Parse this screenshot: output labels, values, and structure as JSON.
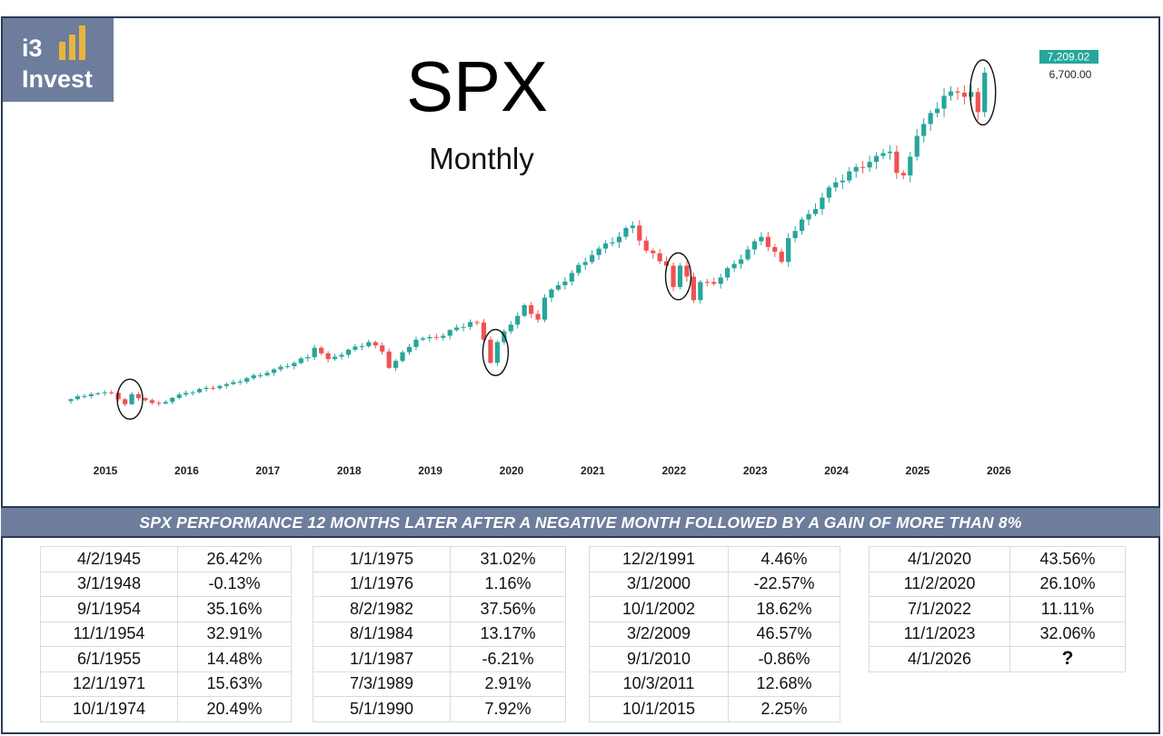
{
  "logo": {
    "line1": "i3",
    "line2": "Invest"
  },
  "title": {
    "main": "SPX",
    "sub": "Monthly"
  },
  "price_tags": {
    "current": "7,209.02",
    "level": "6,700.00",
    "current_color": "#26a69a"
  },
  "colors": {
    "up": "#26a69a",
    "down": "#ef5350",
    "banner": "#6e7d9c",
    "border": "#2b3a55"
  },
  "chart_data": {
    "type": "candlestick",
    "title": "SPX",
    "subtitle": "Monthly",
    "x_ticks": [
      "2015",
      "2016",
      "2017",
      "2018",
      "2019",
      "2020",
      "2021",
      "2022",
      "2023",
      "2024",
      "2025",
      "2026"
    ],
    "ylim": [
      1800,
      7300
    ],
    "close_path": [
      [
        "2015-01",
        2000
      ],
      [
        "2015-04",
        2080
      ],
      [
        "2015-07",
        2100
      ],
      [
        "2015-09",
        1920
      ],
      [
        "2015-10",
        2080
      ],
      [
        "2016-01",
        1940
      ],
      [
        "2016-02",
        1930
      ],
      [
        "2016-06",
        2100
      ],
      [
        "2016-12",
        2240
      ],
      [
        "2017-06",
        2420
      ],
      [
        "2017-12",
        2670
      ],
      [
        "2018-01",
        2820
      ],
      [
        "2018-03",
        2640
      ],
      [
        "2018-09",
        2910
      ],
      [
        "2018-11",
        2760
      ],
      [
        "2018-12",
        2500
      ],
      [
        "2019-04",
        2950
      ],
      [
        "2019-07",
        2980
      ],
      [
        "2019-12",
        3230
      ],
      [
        "2020-01",
        3225
      ],
      [
        "2020-02",
        2950
      ],
      [
        "2020-03",
        2580
      ],
      [
        "2020-04",
        2910
      ],
      [
        "2020-08",
        3500
      ],
      [
        "2020-09",
        3360
      ],
      [
        "2020-10",
        3270
      ],
      [
        "2020-11",
        3620
      ],
      [
        "2021-06",
        4300
      ],
      [
        "2021-12",
        4770
      ],
      [
        "2022-02",
        4370
      ],
      [
        "2022-05",
        4130
      ],
      [
        "2022-06",
        3790
      ],
      [
        "2022-07",
        4130
      ],
      [
        "2022-08",
        3955
      ],
      [
        "2022-09",
        3580
      ],
      [
        "2022-10",
        3870
      ],
      [
        "2022-12",
        3840
      ],
      [
        "2023-07",
        4590
      ],
      [
        "2023-10",
        4190
      ],
      [
        "2023-11",
        4570
      ],
      [
        "2024-06",
        5460
      ],
      [
        "2024-12",
        5880
      ],
      [
        "2025-02",
        5950
      ],
      [
        "2025-03",
        5610
      ],
      [
        "2025-04",
        5570
      ],
      [
        "2025-06",
        6200
      ],
      [
        "2025-10",
        6840
      ],
      [
        "2026-02",
        6900
      ],
      [
        "2026-03",
        6580
      ],
      [
        "2026-04",
        7209
      ]
    ],
    "highlighted_months": [
      "2015-10",
      "2020-04",
      "2022-07",
      "2026-04"
    ],
    "current_price": 7209.02,
    "marked_level": 6700.0
  },
  "banner": {
    "text": "SPX PERFORMANCE 12 MONTHS LATER AFTER A NEGATIVE MONTH FOLLOWED BY A GAIN OF MORE THAN 8%"
  },
  "tables": [
    {
      "rows": [
        {
          "date": "4/2/1945",
          "pct": "26.42%"
        },
        {
          "date": "3/1/1948",
          "pct": "-0.13%"
        },
        {
          "date": "9/1/1954",
          "pct": "35.16%"
        },
        {
          "date": "11/1/1954",
          "pct": "32.91%"
        },
        {
          "date": "6/1/1955",
          "pct": "14.48%"
        },
        {
          "date": "12/1/1971",
          "pct": "15.63%"
        },
        {
          "date": "10/1/1974",
          "pct": "20.49%"
        }
      ]
    },
    {
      "rows": [
        {
          "date": "1/1/1975",
          "pct": "31.02%"
        },
        {
          "date": "1/1/1976",
          "pct": "1.16%"
        },
        {
          "date": "8/2/1982",
          "pct": "37.56%"
        },
        {
          "date": "8/1/1984",
          "pct": "13.17%"
        },
        {
          "date": "1/1/1987",
          "pct": "-6.21%"
        },
        {
          "date": "7/3/1989",
          "pct": "2.91%"
        },
        {
          "date": "5/1/1990",
          "pct": "7.92%"
        }
      ]
    },
    {
      "rows": [
        {
          "date": "12/2/1991",
          "pct": "4.46%"
        },
        {
          "date": "3/1/2000",
          "pct": "-22.57%"
        },
        {
          "date": "10/1/2002",
          "pct": "18.62%"
        },
        {
          "date": "3/2/2009",
          "pct": "46.57%"
        },
        {
          "date": "9/1/2010",
          "pct": "-0.86%"
        },
        {
          "date": "10/3/2011",
          "pct": "12.68%"
        },
        {
          "date": "10/1/2015",
          "pct": "2.25%"
        }
      ]
    },
    {
      "rows": [
        {
          "date": "4/1/2020",
          "pct": "43.56%"
        },
        {
          "date": "11/2/2020",
          "pct": "26.10%"
        },
        {
          "date": "7/1/2022",
          "pct": "11.11%"
        },
        {
          "date": "11/1/2023",
          "pct": "32.06%"
        },
        {
          "date": "4/1/2026",
          "pct": "?"
        }
      ]
    }
  ]
}
